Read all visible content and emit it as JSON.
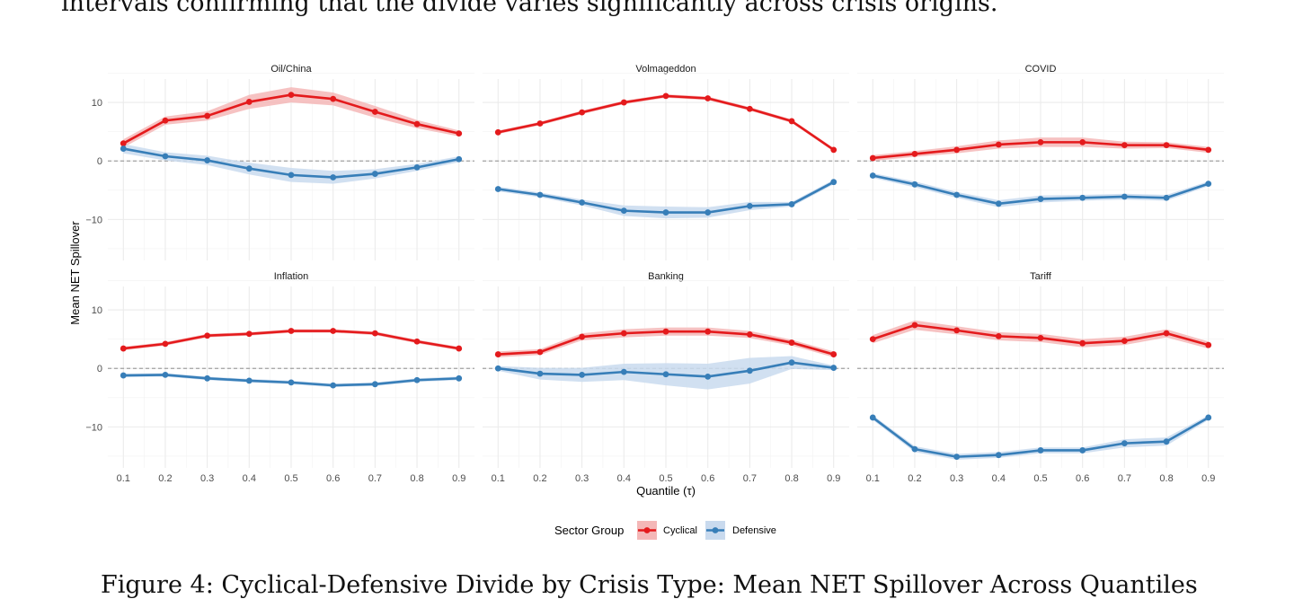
{
  "page": {
    "top_text": "intervals confirming that the divide varies significantly across crisis origins.",
    "caption_text": "Figure 4: Cyclical-Defensive Divide by Crisis Type: Mean NET Spillover Across Quantiles"
  },
  "chart_data": {
    "type": "line",
    "layout": "facet-grid 2x3",
    "xlabel": "Quantile (τ)",
    "ylabel": "Mean NET Spillover",
    "x": [
      0.1,
      0.2,
      0.3,
      0.4,
      0.5,
      0.6,
      0.7,
      0.8,
      0.9
    ],
    "x_tick_labels": [
      "0.1",
      "0.2",
      "0.3",
      "0.4",
      "0.5",
      "0.6",
      "0.7",
      "0.8",
      "0.9"
    ],
    "ylim": [
      -17,
      14
    ],
    "y_ticks": [
      10,
      0,
      -10
    ],
    "y_tick_labels": [
      "10",
      "0",
      "−10"
    ],
    "reference_line": {
      "y": 0,
      "style": "dashed"
    },
    "grid": true,
    "legend": {
      "title": "Sector Group",
      "placement": "bottom",
      "entries": [
        {
          "name": "Cyclical",
          "color": "#E41A1C",
          "band_color": "#F4B7B7"
        },
        {
          "name": "Defensive",
          "color": "#377EB8",
          "band_color": "#C9DAEE"
        }
      ]
    },
    "panels": [
      {
        "title": "Oil/China",
        "series": [
          {
            "name": "Cyclical",
            "values": [
              3.0,
              6.9,
              7.7,
              10.1,
              11.3,
              10.6,
              8.4,
              6.3,
              4.7
            ],
            "band": [
              0.7,
              0.7,
              0.8,
              1.2,
              1.3,
              1.1,
              1.0,
              0.7,
              0.5
            ]
          },
          {
            "name": "Defensive",
            "values": [
              2.1,
              0.8,
              0.1,
              -1.3,
              -2.4,
              -2.8,
              -2.2,
              -1.1,
              0.3
            ],
            "band": [
              0.8,
              0.7,
              0.8,
              1.0,
              1.2,
              1.1,
              0.8,
              0.6,
              0.5
            ]
          }
        ]
      },
      {
        "title": "Volmageddon",
        "series": [
          {
            "name": "Cyclical",
            "values": [
              4.9,
              6.4,
              8.3,
              10.0,
              11.1,
              10.7,
              8.9,
              6.8,
              1.9
            ],
            "band": [
              0.3,
              0.3,
              0.3,
              0.3,
              0.3,
              0.3,
              0.3,
              0.3,
              0.3
            ]
          },
          {
            "name": "Defensive",
            "values": [
              -4.8,
              -5.8,
              -7.1,
              -8.5,
              -8.8,
              -8.8,
              -7.7,
              -7.4,
              -3.6
            ],
            "band": [
              0.4,
              0.4,
              0.5,
              0.9,
              1.0,
              0.9,
              0.7,
              0.4,
              0.4
            ]
          }
        ]
      },
      {
        "title": "COVID",
        "series": [
          {
            "name": "Cyclical",
            "values": [
              0.5,
              1.2,
              1.9,
              2.8,
              3.2,
              3.2,
              2.7,
              2.7,
              1.9
            ],
            "band": [
              0.5,
              0.5,
              0.6,
              0.7,
              0.8,
              0.8,
              0.6,
              0.5,
              0.5
            ]
          },
          {
            "name": "Defensive",
            "values": [
              -2.5,
              -4.0,
              -5.8,
              -7.3,
              -6.5,
              -6.3,
              -6.1,
              -6.3,
              -3.9
            ],
            "band": [
              0.4,
              0.5,
              0.5,
              0.6,
              0.6,
              0.5,
              0.5,
              0.5,
              0.4
            ]
          }
        ]
      },
      {
        "title": "Inflation",
        "series": [
          {
            "name": "Cyclical",
            "values": [
              3.4,
              4.2,
              5.6,
              5.9,
              6.4,
              6.4,
              6.0,
              4.6,
              3.4
            ],
            "band": [
              0.3,
              0.3,
              0.3,
              0.3,
              0.3,
              0.3,
              0.3,
              0.3,
              0.3
            ]
          },
          {
            "name": "Defensive",
            "values": [
              -1.2,
              -1.1,
              -1.7,
              -2.1,
              -2.4,
              -2.9,
              -2.7,
              -2.0,
              -1.7
            ],
            "band": [
              0.3,
              0.3,
              0.3,
              0.3,
              0.3,
              0.3,
              0.3,
              0.3,
              0.3
            ]
          }
        ]
      },
      {
        "title": "Banking",
        "series": [
          {
            "name": "Cyclical",
            "values": [
              2.4,
              2.8,
              5.4,
              6.0,
              6.3,
              6.3,
              5.8,
              4.4,
              2.4
            ],
            "band": [
              0.5,
              0.5,
              0.6,
              0.7,
              0.7,
              0.7,
              0.6,
              0.5,
              0.5
            ]
          },
          {
            "name": "Defensive",
            "values": [
              0.0,
              -0.9,
              -1.1,
              -0.6,
              -1.0,
              -1.4,
              -0.4,
              1.0,
              0.1
            ],
            "band": [
              0.4,
              1.0,
              1.2,
              1.4,
              1.9,
              2.2,
              2.2,
              1.1,
              0.4
            ]
          }
        ]
      },
      {
        "title": "Tariff",
        "series": [
          {
            "name": "Cyclical",
            "values": [
              5.0,
              7.4,
              6.5,
              5.5,
              5.2,
              4.3,
              4.7,
              6.0,
              4.0
            ],
            "band": [
              0.7,
              0.8,
              0.7,
              0.7,
              0.7,
              0.7,
              0.7,
              0.7,
              0.6
            ]
          },
          {
            "name": "Defensive",
            "values": [
              -8.4,
              -13.8,
              -15.1,
              -14.8,
              -14.0,
              -14.0,
              -12.8,
              -12.5,
              -8.4
            ],
            "band": [
              0.4,
              0.5,
              0.5,
              0.5,
              0.5,
              0.5,
              0.7,
              0.7,
              0.4
            ]
          }
        ]
      }
    ]
  }
}
